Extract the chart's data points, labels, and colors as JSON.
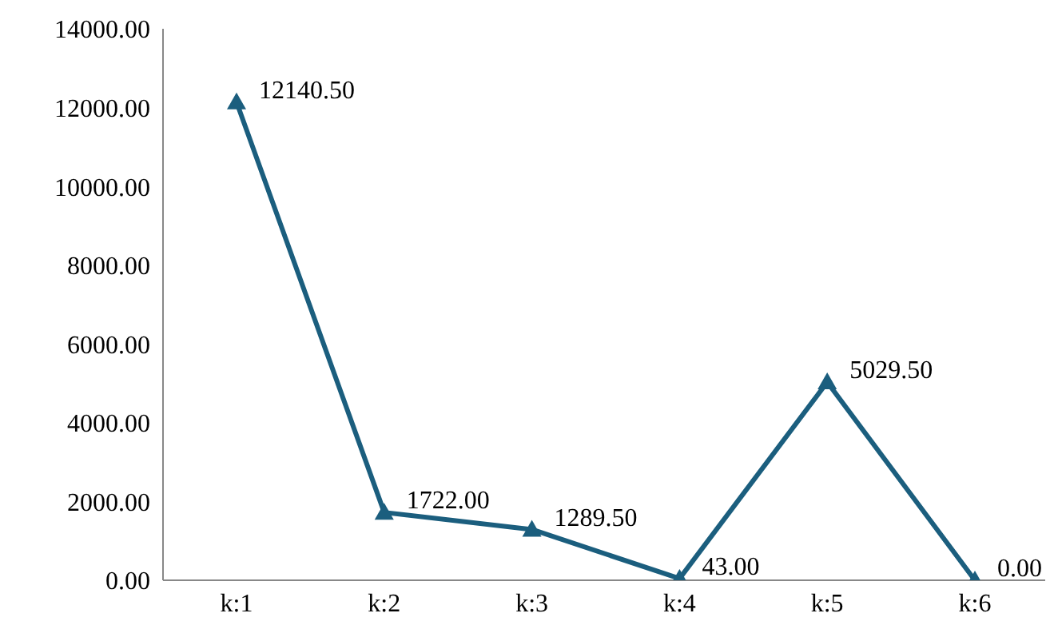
{
  "chart_data": {
    "type": "line",
    "categories": [
      "k:1",
      "k:2",
      "k:3",
      "k:4",
      "k:5",
      "k:6"
    ],
    "series": [
      {
        "color": "#1b5e7e",
        "values": [
          12140.5,
          1722,
          1289.5,
          43,
          5029.5,
          0
        ],
        "value_labels": [
          "12140.50",
          "1722.00",
          "1289.50",
          "43.00",
          "5029.50",
          "0.00"
        ]
      }
    ],
    "ylim": [
      0,
      14000
    ],
    "yticks": [
      {
        "value": 0,
        "label": "0.00"
      },
      {
        "value": 2000,
        "label": "2000.00"
      },
      {
        "value": 4000,
        "label": "4000.00"
      },
      {
        "value": 6000,
        "label": "6000.00"
      },
      {
        "value": 8000,
        "label": "8000.00"
      },
      {
        "value": 10000,
        "label": "10000.00"
      },
      {
        "value": 12000,
        "label": "12000.00"
      },
      {
        "value": 14000,
        "label": "14000.00"
      }
    ],
    "grid": false,
    "legend": false,
    "marker": "triangle",
    "line_style": "solid"
  }
}
